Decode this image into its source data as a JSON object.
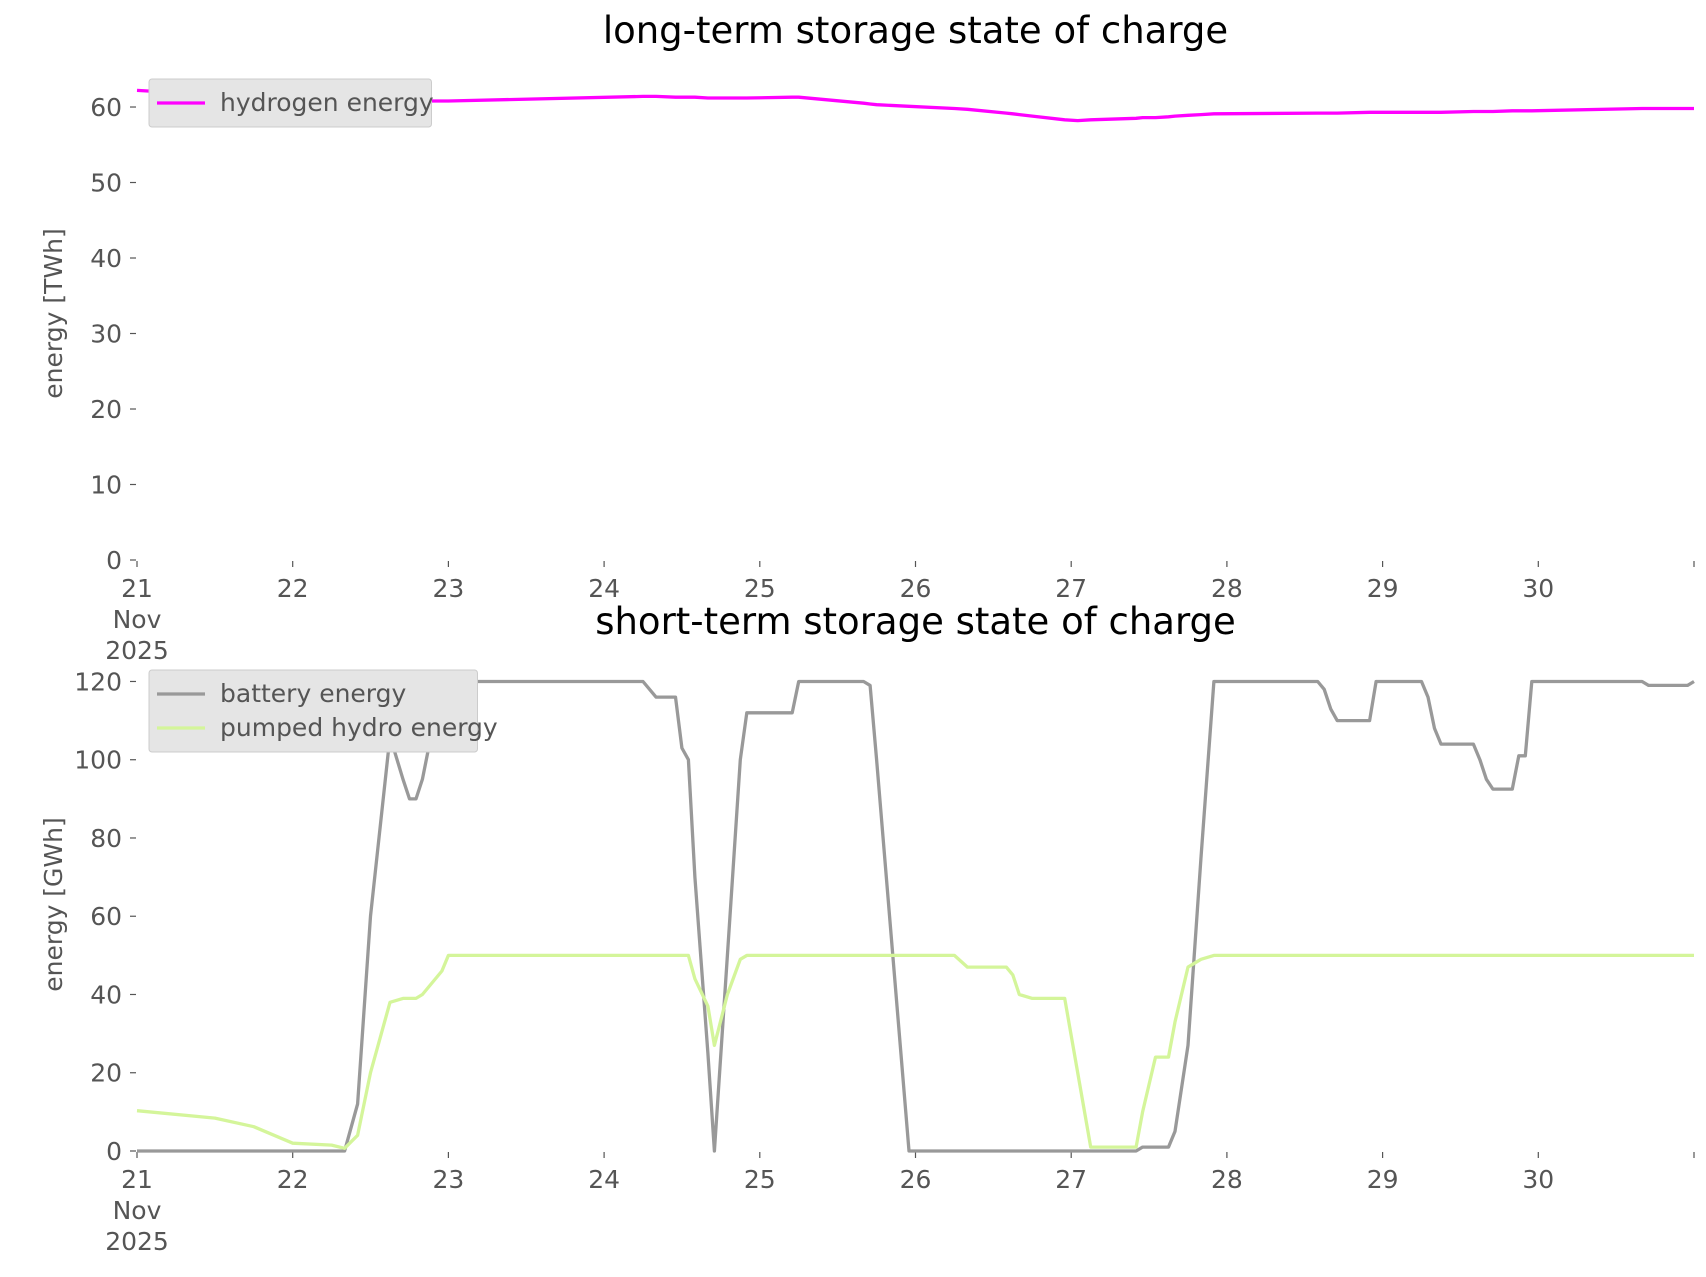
{
  "chart_data": [
    {
      "type": "line",
      "title": "long-term storage state of charge",
      "y_label": "energy [TWh]",
      "x": [
        "2025-11-21 00:00",
        "2025-11-21 12:00",
        "2025-11-21 18:00",
        "2025-11-22 00:00",
        "2025-11-22 06:00",
        "2025-11-22 08:00",
        "2025-11-22 10:00",
        "2025-11-22 12:00",
        "2025-11-22 15:00",
        "2025-11-22 17:00",
        "2025-11-22 18:00",
        "2025-11-22 19:00",
        "2025-11-22 20:00",
        "2025-11-22 23:00",
        "2025-11-23 00:00",
        "2025-11-24 06:00",
        "2025-11-24 08:00",
        "2025-11-24 11:00",
        "2025-11-24 12:00",
        "2025-11-24 13:00",
        "2025-11-24 14:00",
        "2025-11-24 16:00",
        "2025-11-24 17:00",
        "2025-11-24 19:00",
        "2025-11-24 21:00",
        "2025-11-24 22:00",
        "2025-11-25 05:00",
        "2025-11-25 06:00",
        "2025-11-25 16:00",
        "2025-11-25 17:00",
        "2025-11-25 18:00",
        "2025-11-25 23:00",
        "2025-11-26 06:00",
        "2025-11-26 08:00",
        "2025-11-26 14:00",
        "2025-11-26 15:00",
        "2025-11-26 16:00",
        "2025-11-26 18:00",
        "2025-11-26 23:00",
        "2025-11-27 01:00",
        "2025-11-27 03:00",
        "2025-11-27 10:00",
        "2025-11-27 11:00",
        "2025-11-27 13:00",
        "2025-11-27 15:00",
        "2025-11-27 16:00",
        "2025-11-27 18:00",
        "2025-11-27 20:00",
        "2025-11-27 22:00",
        "2025-11-28 14:00",
        "2025-11-28 15:00",
        "2025-11-28 16:00",
        "2025-11-28 17:00",
        "2025-11-28 22:00",
        "2025-11-28 23:00",
        "2025-11-29 06:00",
        "2025-11-29 07:00",
        "2025-11-29 08:00",
        "2025-11-29 09:00",
        "2025-11-29 14:00",
        "2025-11-29 15:00",
        "2025-11-29 16:00",
        "2025-11-29 17:00",
        "2025-11-29 20:00",
        "2025-11-29 21:00",
        "2025-11-29 22:00",
        "2025-11-29 23:00",
        "2025-11-30 16:00",
        "2025-11-30 17:00",
        "2025-11-30 23:00",
        "2025-12-01 00:00"
      ],
      "series": [
        {
          "name": "hydrogen energy",
          "color": "#ff00ff",
          "values": [
            62.2,
            61.6,
            61.3,
            61.0,
            60.9,
            60.9,
            60.85,
            60.8,
            60.8,
            60.8,
            60.8,
            60.8,
            60.8,
            60.8,
            60.8,
            61.4,
            61.4,
            61.3,
            61.3,
            61.3,
            61.3,
            61.2,
            61.2,
            61.2,
            61.2,
            61.2,
            61.3,
            61.3,
            60.5,
            60.4,
            60.3,
            60.1,
            59.8,
            59.7,
            59.2,
            59.1,
            59.0,
            58.8,
            58.3,
            58.2,
            58.3,
            58.5,
            58.6,
            58.6,
            58.7,
            58.8,
            58.9,
            59.0,
            59.1,
            59.2,
            59.2,
            59.2,
            59.2,
            59.3,
            59.3,
            59.3,
            59.3,
            59.3,
            59.3,
            59.4,
            59.4,
            59.4,
            59.4,
            59.5,
            59.5,
            59.5,
            59.5,
            59.8,
            59.8,
            59.8,
            59.8
          ]
        }
      ],
      "xlim": [
        "2025-11-21",
        "2025-12-01"
      ],
      "xticks": [
        {
          "value": "2025-11-21",
          "label": "21\nNov\n2025"
        },
        {
          "value": "2025-11-22",
          "label": "22"
        },
        {
          "value": "2025-11-23",
          "label": "23"
        },
        {
          "value": "2025-11-24",
          "label": "24"
        },
        {
          "value": "2025-11-25",
          "label": "25"
        },
        {
          "value": "2025-11-26",
          "label": "26"
        },
        {
          "value": "2025-11-27",
          "label": "27"
        },
        {
          "value": "2025-11-28",
          "label": "28"
        },
        {
          "value": "2025-11-29",
          "label": "29"
        },
        {
          "value": "2025-11-30",
          "label": "30"
        },
        {
          "value": "2025-12-01",
          "label": null
        }
      ],
      "ylim": [
        0,
        65.3
      ],
      "yticks": [
        0,
        10,
        20,
        30,
        40,
        50,
        60
      ],
      "legend": "upper left",
      "grid": false
    },
    {
      "type": "line",
      "title": "short-term storage state of charge",
      "y_label": "energy [GWh]",
      "x": [
        "2025-11-21 00:00",
        "2025-11-21 12:00",
        "2025-11-21 18:00",
        "2025-11-22 00:00",
        "2025-11-22 06:00",
        "2025-11-22 08:00",
        "2025-11-22 10:00",
        "2025-11-22 12:00",
        "2025-11-22 15:00",
        "2025-11-22 17:00",
        "2025-11-22 18:00",
        "2025-11-22 19:00",
        "2025-11-22 20:00",
        "2025-11-22 23:00",
        "2025-11-23 00:00",
        "2025-11-24 06:00",
        "2025-11-24 08:00",
        "2025-11-24 11:00",
        "2025-11-24 12:00",
        "2025-11-24 13:00",
        "2025-11-24 14:00",
        "2025-11-24 16:00",
        "2025-11-24 17:00",
        "2025-11-24 19:00",
        "2025-11-24 21:00",
        "2025-11-24 22:00",
        "2025-11-25 05:00",
        "2025-11-25 06:00",
        "2025-11-25 16:00",
        "2025-11-25 17:00",
        "2025-11-25 18:00",
        "2025-11-25 23:00",
        "2025-11-26 06:00",
        "2025-11-26 08:00",
        "2025-11-26 14:00",
        "2025-11-26 15:00",
        "2025-11-26 16:00",
        "2025-11-26 18:00",
        "2025-11-26 23:00",
        "2025-11-27 01:00",
        "2025-11-27 03:00",
        "2025-11-27 10:00",
        "2025-11-27 11:00",
        "2025-11-27 13:00",
        "2025-11-27 15:00",
        "2025-11-27 16:00",
        "2025-11-27 18:00",
        "2025-11-27 20:00",
        "2025-11-27 22:00",
        "2025-11-28 14:00",
        "2025-11-28 15:00",
        "2025-11-28 16:00",
        "2025-11-28 17:00",
        "2025-11-28 22:00",
        "2025-11-28 23:00",
        "2025-11-29 06:00",
        "2025-11-29 07:00",
        "2025-11-29 08:00",
        "2025-11-29 09:00",
        "2025-11-29 14:00",
        "2025-11-29 15:00",
        "2025-11-29 16:00",
        "2025-11-29 17:00",
        "2025-11-29 20:00",
        "2025-11-29 21:00",
        "2025-11-29 22:00",
        "2025-11-29 23:00",
        "2025-11-30 16:00",
        "2025-11-30 17:00",
        "2025-11-30 23:00",
        "2025-12-01 00:00"
      ],
      "series": [
        {
          "name": "battery energy",
          "color": "#999999",
          "values": [
            0,
            0,
            0,
            0,
            0,
            0,
            12,
            60,
            106,
            95,
            90,
            90,
            95,
            120,
            120,
            120,
            116,
            116,
            103,
            100,
            70,
            25,
            0,
            50,
            100,
            112,
            112,
            120,
            120,
            119,
            100,
            0,
            0,
            0,
            0,
            0,
            0,
            0,
            0,
            0,
            0,
            0,
            1,
            1,
            1,
            5,
            27,
            75,
            120,
            120,
            118,
            113,
            110,
            110,
            120,
            120,
            116,
            108,
            104,
            104,
            100,
            95,
            92.5,
            92.5,
            101,
            101,
            120,
            120,
            119,
            119,
            120
          ]
        },
        {
          "name": "pumped hydro energy",
          "color": "#d4f59a",
          "values": [
            10.3,
            8.4,
            6.2,
            2.0,
            1.5,
            0.7,
            4,
            20,
            38,
            39,
            39,
            39,
            40,
            46,
            50,
            50,
            50,
            50,
            50,
            50,
            44,
            37,
            27,
            40,
            49,
            50,
            50,
            50,
            50,
            50,
            50,
            50,
            50,
            47,
            47,
            45,
            40,
            39,
            39,
            20,
            1,
            1,
            10,
            24,
            24,
            33,
            47,
            49,
            50,
            50,
            50,
            50,
            50,
            50,
            50,
            50,
            50,
            50,
            50,
            50,
            50,
            50,
            50,
            50,
            50,
            50,
            50,
            50,
            50,
            50,
            50
          ]
        }
      ],
      "xlim": [
        "2025-11-21",
        "2025-12-01"
      ],
      "xticks": [
        {
          "value": "2025-11-21",
          "label": "21\nNov\n2025"
        },
        {
          "value": "2025-11-22",
          "label": "22"
        },
        {
          "value": "2025-11-23",
          "label": "23"
        },
        {
          "value": "2025-11-24",
          "label": "24"
        },
        {
          "value": "2025-11-25",
          "label": "25"
        },
        {
          "value": "2025-11-26",
          "label": "26"
        },
        {
          "value": "2025-11-27",
          "label": "27"
        },
        {
          "value": "2025-11-28",
          "label": "28"
        },
        {
          "value": "2025-11-29",
          "label": "29"
        },
        {
          "value": "2025-11-30",
          "label": "30"
        },
        {
          "value": "2025-12-01",
          "label": null
        }
      ],
      "ylim": [
        0,
        126
      ],
      "yticks": [
        0,
        20,
        40,
        60,
        80,
        100,
        120
      ],
      "legend": "upper left",
      "grid": false
    }
  ]
}
